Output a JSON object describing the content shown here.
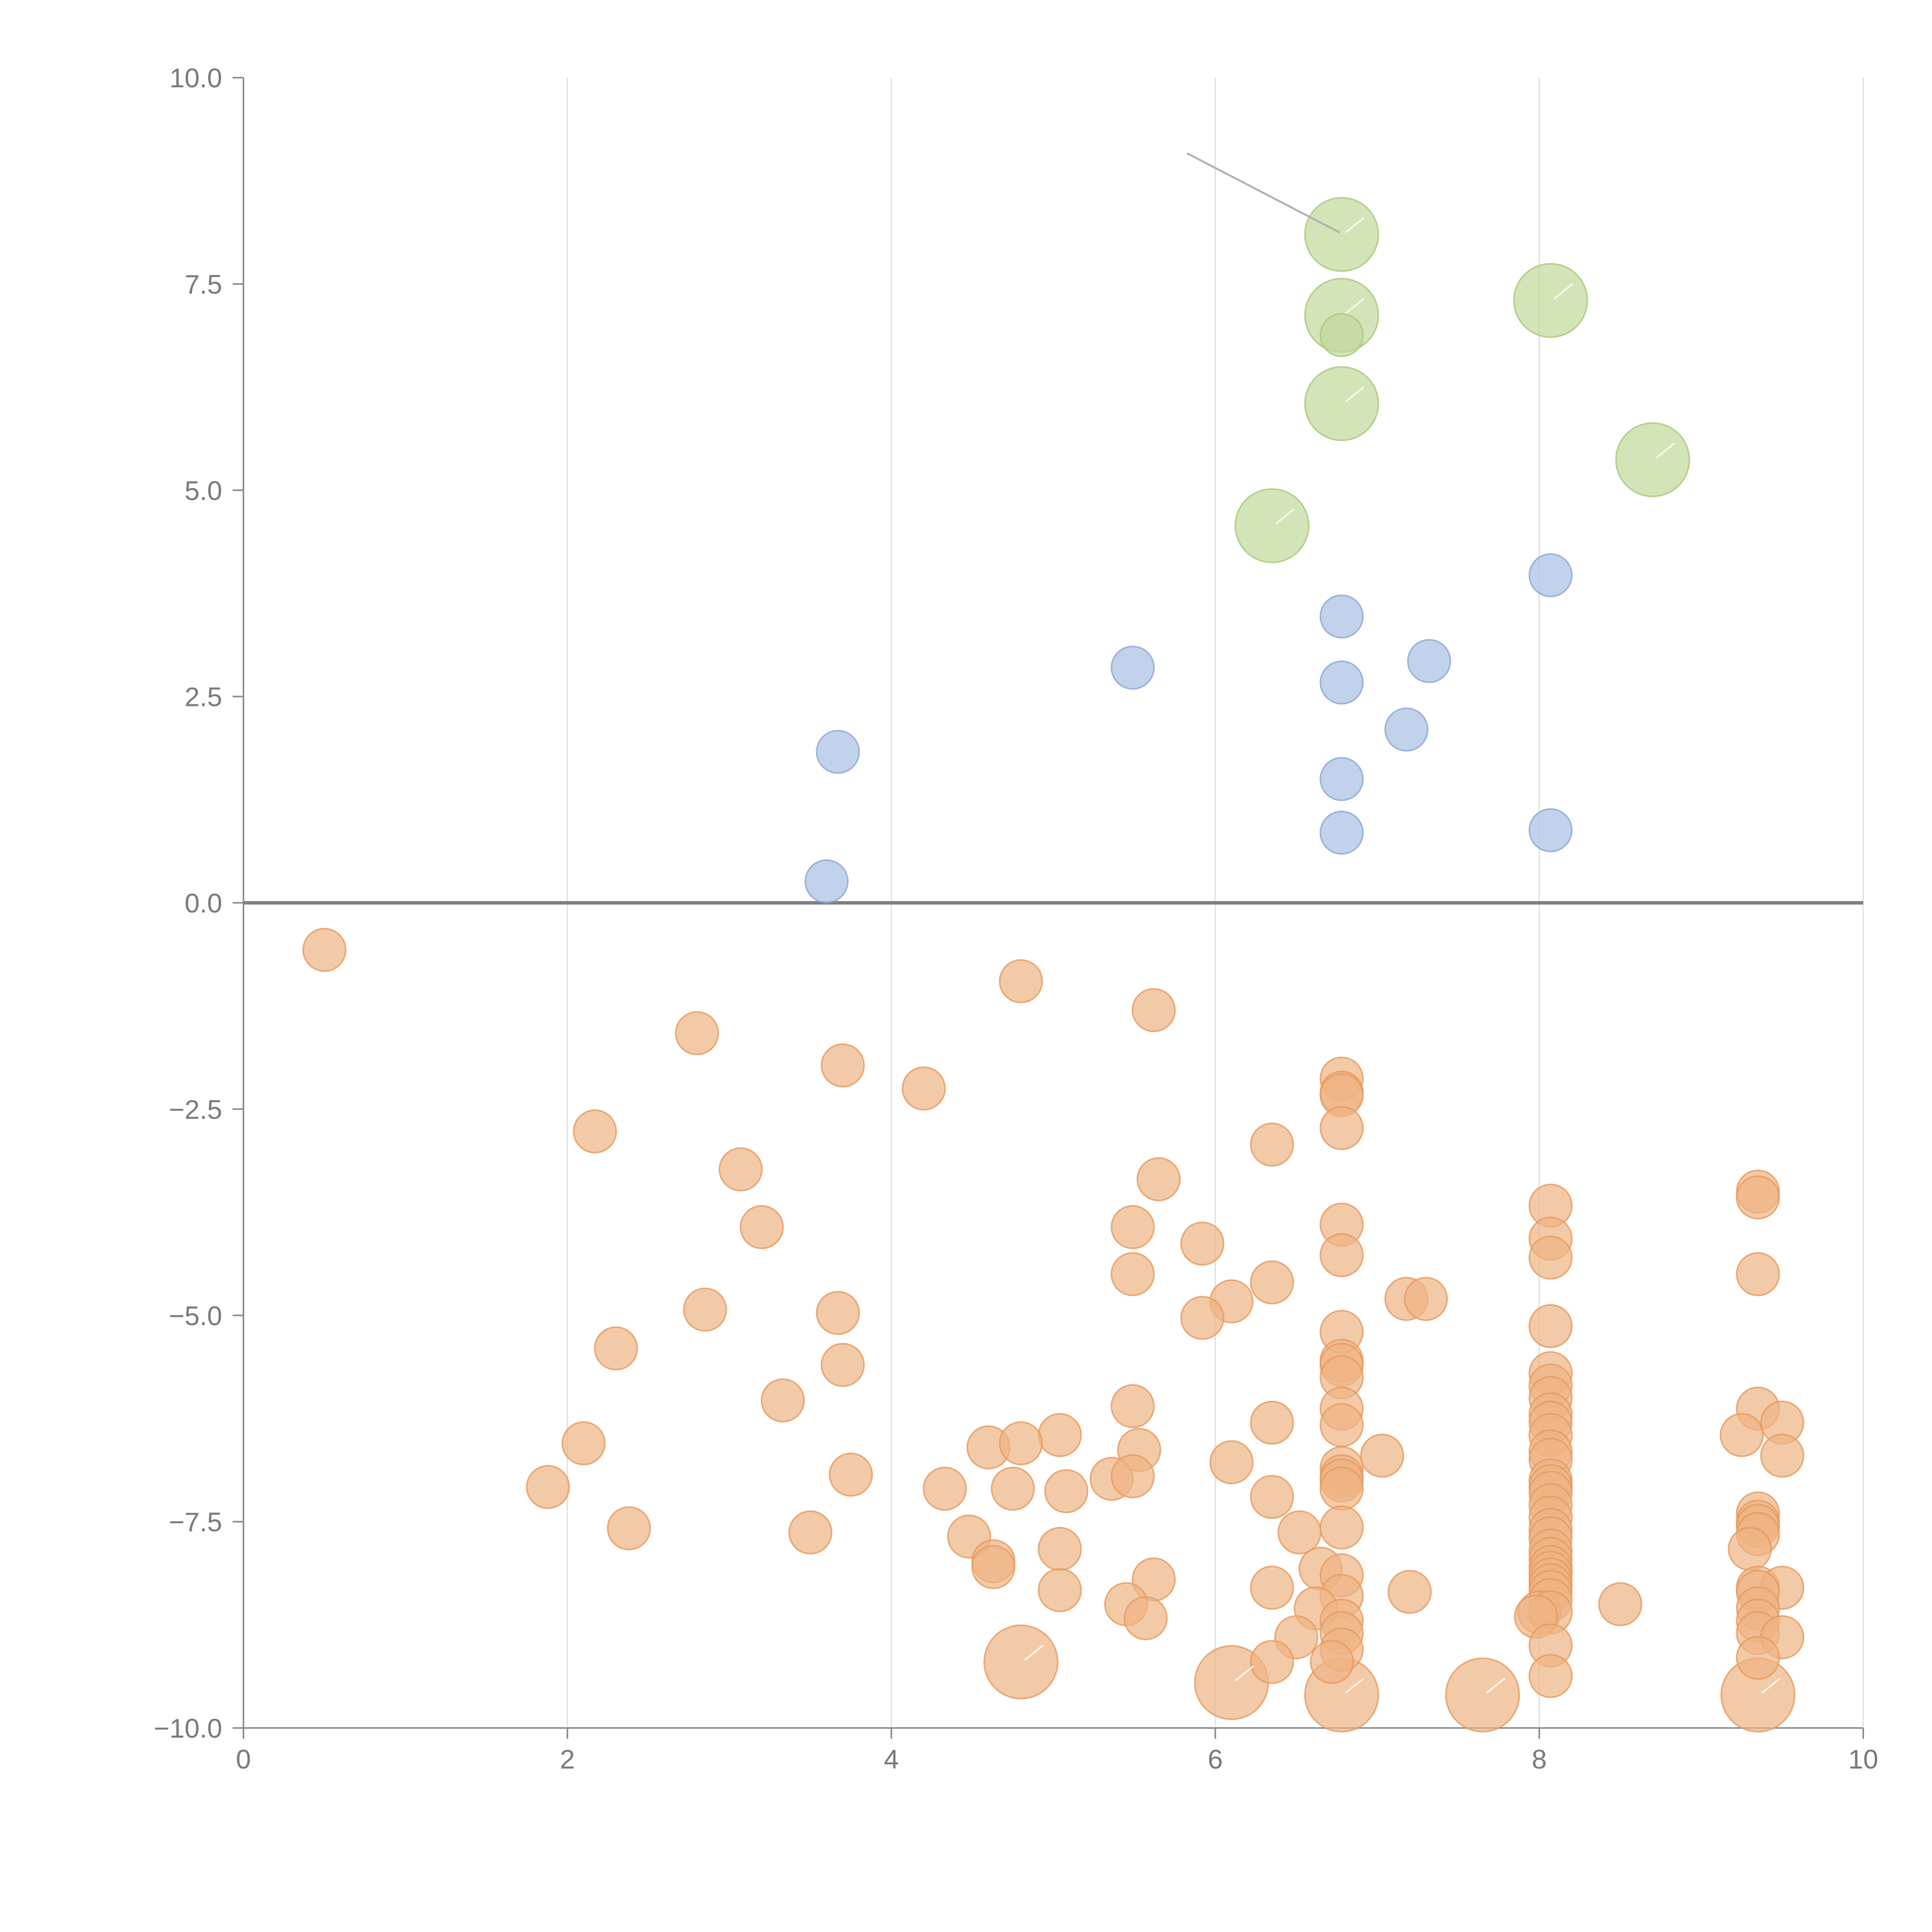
{
  "chart_data": {
    "type": "scatter",
    "title": "",
    "xlabel": "",
    "ylabel": "",
    "xlim": [
      0,
      10
    ],
    "ylim": [
      -10,
      10
    ],
    "xticks": [
      "0",
      "2",
      "4",
      "6",
      "8",
      "10"
    ],
    "yticks": [
      "10.0",
      "7.5",
      "5.0",
      "2.5",
      "0.0",
      "−2.5",
      "−5.0",
      "−7.5",
      "−10.0"
    ],
    "x_grid": true,
    "y_grid": false,
    "zero_line": true,
    "legend": "none",
    "colors": {
      "green": "#c2d99b",
      "green_stroke": "#a8c878",
      "blue": "#a9bfe3",
      "blue_stroke": "#8aa6d6",
      "orange": "#eeb483",
      "orange_stroke": "#e6985c"
    },
    "series": [
      {
        "color": "green",
        "size": "large",
        "points": [
          [
            6.78,
            8.1
          ],
          [
            6.78,
            7.12
          ],
          [
            8.07,
            7.3
          ],
          [
            6.78,
            6.05
          ],
          [
            8.7,
            5.37
          ],
          [
            6.35,
            4.57
          ]
        ]
      },
      {
        "color": "green",
        "size": "small",
        "points": [
          [
            6.78,
            6.88
          ]
        ]
      },
      {
        "color": "blue",
        "size": "small",
        "points": [
          [
            8.07,
            3.97
          ],
          [
            6.78,
            3.47
          ],
          [
            7.32,
            2.93
          ],
          [
            5.49,
            2.85
          ],
          [
            6.78,
            2.67
          ],
          [
            7.18,
            2.1
          ],
          [
            3.67,
            1.83
          ],
          [
            6.78,
            1.5
          ],
          [
            6.78,
            0.85
          ],
          [
            8.07,
            0.88
          ],
          [
            3.6,
            0.26
          ]
        ]
      },
      {
        "color": "orange",
        "size": "large",
        "points": [
          [
            4.8,
            -9.2
          ],
          [
            6.1,
            -9.45
          ],
          [
            6.78,
            -9.6
          ],
          [
            7.65,
            -9.6
          ],
          [
            9.35,
            -9.6
          ]
        ]
      },
      {
        "color": "orange",
        "size": "small",
        "points": [
          [
            0.5,
            -0.57
          ],
          [
            4.8,
            -0.95
          ],
          [
            5.62,
            -1.3
          ],
          [
            2.8,
            -1.58
          ],
          [
            3.7,
            -1.97
          ],
          [
            4.2,
            -2.25
          ],
          [
            6.78,
            -2.13
          ],
          [
            6.78,
            -2.3
          ],
          [
            6.78,
            -2.33
          ],
          [
            2.17,
            -2.77
          ],
          [
            6.78,
            -2.73
          ],
          [
            6.35,
            -2.93
          ],
          [
            3.07,
            -3.23
          ],
          [
            5.65,
            -3.35
          ],
          [
            9.35,
            -3.5
          ],
          [
            9.35,
            -3.57
          ],
          [
            8.07,
            -3.67
          ],
          [
            3.2,
            -3.93
          ],
          [
            5.49,
            -3.93
          ],
          [
            6.78,
            -3.9
          ],
          [
            5.92,
            -4.13
          ],
          [
            8.07,
            -4.07
          ],
          [
            8.07,
            -4.3
          ],
          [
            6.78,
            -4.27
          ],
          [
            5.49,
            -4.5
          ],
          [
            9.35,
            -4.5
          ],
          [
            6.35,
            -4.6
          ],
          [
            7.18,
            -4.8
          ],
          [
            7.3,
            -4.8
          ],
          [
            6.1,
            -4.83
          ],
          [
            2.85,
            -4.93
          ],
          [
            3.67,
            -4.97
          ],
          [
            5.92,
            -5.03
          ],
          [
            8.07,
            -5.13
          ],
          [
            6.78,
            -5.2
          ],
          [
            2.3,
            -5.4
          ],
          [
            6.78,
            -5.55
          ],
          [
            6.78,
            -5.6
          ],
          [
            3.7,
            -5.6
          ],
          [
            6.78,
            -5.75
          ],
          [
            8.07,
            -5.7
          ],
          [
            8.07,
            -5.85
          ],
          [
            8.07,
            -6.0
          ],
          [
            3.33,
            -6.03
          ],
          [
            5.49,
            -6.1
          ],
          [
            6.78,
            -6.13
          ],
          [
            9.35,
            -6.13
          ],
          [
            8.07,
            -6.2
          ],
          [
            8.07,
            -6.3
          ],
          [
            9.5,
            -6.3
          ],
          [
            6.78,
            -6.33
          ],
          [
            6.35,
            -6.3
          ],
          [
            8.07,
            -6.45
          ],
          [
            9.25,
            -6.45
          ],
          [
            5.04,
            -6.45
          ],
          [
            2.1,
            -6.55
          ],
          [
            4.6,
            -6.6
          ],
          [
            4.8,
            -6.55
          ],
          [
            5.53,
            -6.63
          ],
          [
            8.07,
            -6.65
          ],
          [
            7.03,
            -6.7
          ],
          [
            9.5,
            -6.7
          ],
          [
            8.07,
            -6.75
          ],
          [
            6.1,
            -6.78
          ],
          [
            6.78,
            -6.85
          ],
          [
            6.78,
            -6.95
          ],
          [
            3.75,
            -6.93
          ],
          [
            5.36,
            -6.98
          ],
          [
            5.49,
            -6.95
          ],
          [
            6.78,
            -7.0
          ],
          [
            8.07,
            -7.0
          ],
          [
            1.88,
            -7.08
          ],
          [
            8.07,
            -7.07
          ],
          [
            6.78,
            -7.1
          ],
          [
            4.33,
            -7.1
          ],
          [
            4.75,
            -7.1
          ],
          [
            5.08,
            -7.13
          ],
          [
            8.07,
            -7.15
          ],
          [
            6.35,
            -7.2
          ],
          [
            8.07,
            -7.3
          ],
          [
            9.35,
            -7.4
          ],
          [
            8.07,
            -7.45
          ],
          [
            9.35,
            -7.5
          ],
          [
            9.35,
            -7.55
          ],
          [
            2.38,
            -7.58
          ],
          [
            6.78,
            -7.57
          ],
          [
            8.07,
            -7.6
          ],
          [
            3.5,
            -7.63
          ],
          [
            9.35,
            -7.65
          ],
          [
            4.48,
            -7.68
          ],
          [
            8.07,
            -7.7
          ],
          [
            6.52,
            -7.63
          ],
          [
            8.07,
            -7.85
          ],
          [
            5.04,
            -7.83
          ],
          [
            9.3,
            -7.83
          ],
          [
            8.07,
            -7.95
          ],
          [
            4.63,
            -7.98
          ],
          [
            4.63,
            -8.05
          ],
          [
            8.07,
            -8.05
          ],
          [
            6.65,
            -8.07
          ],
          [
            8.07,
            -8.12
          ],
          [
            6.78,
            -8.15
          ],
          [
            5.62,
            -8.2
          ],
          [
            8.07,
            -8.2
          ],
          [
            8.07,
            -8.27
          ],
          [
            6.35,
            -8.3
          ],
          [
            9.35,
            -8.3
          ],
          [
            9.5,
            -8.3
          ],
          [
            5.04,
            -8.33
          ],
          [
            7.2,
            -8.35
          ],
          [
            8.07,
            -8.35
          ],
          [
            9.35,
            -8.35
          ],
          [
            6.78,
            -8.4
          ],
          [
            8.07,
            -8.45
          ],
          [
            5.45,
            -8.5
          ],
          [
            8.5,
            -8.5
          ],
          [
            9.35,
            -8.55
          ],
          [
            6.62,
            -8.55
          ],
          [
            8.0,
            -8.6
          ],
          [
            8.07,
            -8.6
          ],
          [
            7.98,
            -8.65
          ],
          [
            5.57,
            -8.67
          ],
          [
            9.35,
            -8.7
          ],
          [
            6.78,
            -8.7
          ],
          [
            9.35,
            -8.85
          ],
          [
            6.78,
            -8.85
          ],
          [
            6.5,
            -8.9
          ],
          [
            9.5,
            -8.9
          ],
          [
            8.07,
            -9.0
          ],
          [
            6.78,
            -9.05
          ],
          [
            9.35,
            -9.15
          ],
          [
            6.35,
            -9.2
          ],
          [
            6.72,
            -9.2
          ],
          [
            8.07,
            -9.37
          ]
        ]
      }
    ]
  }
}
